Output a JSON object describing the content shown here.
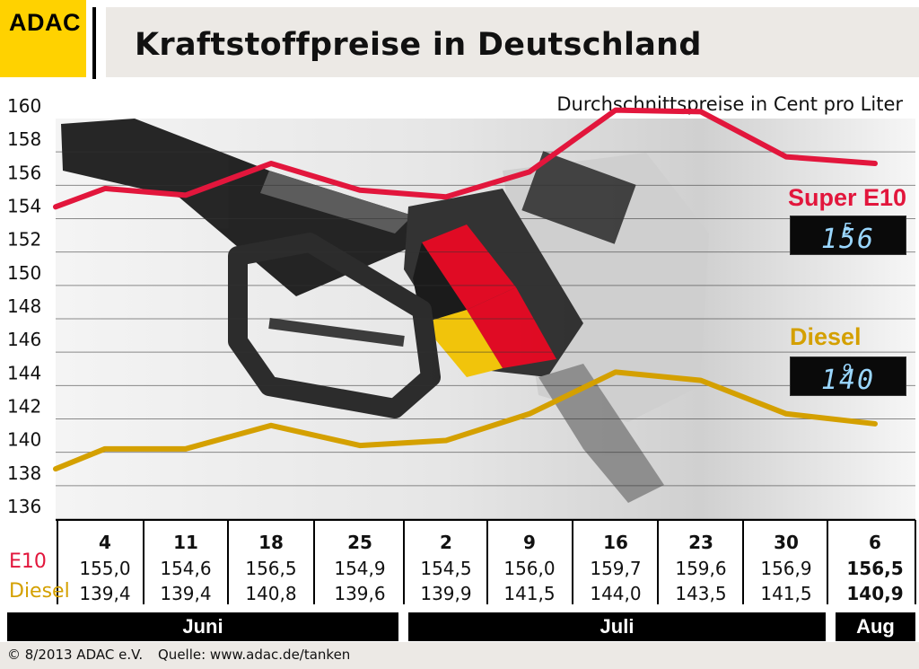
{
  "header": {
    "logo_text": "ADAC",
    "title": "Kraftstoffpreise in Deutschland",
    "subtitle": "Durchschnittspreise in Cent pro Liter"
  },
  "colors": {
    "e10": "#e2163c",
    "diesel": "#d4a000",
    "logo_yellow": "#ffd200"
  },
  "readouts": {
    "e10_label": "Super E10",
    "e10_value": "156",
    "e10_sup": "5",
    "diesel_label": "Diesel",
    "diesel_value": "140",
    "diesel_sup": "9"
  },
  "table": {
    "e10_row_label": "E10",
    "diesel_row_label": "Diesel"
  },
  "months": [
    "Juni",
    "Juli",
    "Aug"
  ],
  "footer": {
    "copyright": "© 8/2013  ADAC e.V.",
    "source": "Quelle: www.adac.de/tanken"
  },
  "chart_data": {
    "type": "line",
    "title": "Kraftstoffpreise in Deutschland",
    "subtitle": "Durchschnittspreise in Cent pro Liter",
    "x": [
      "4",
      "11",
      "18",
      "25",
      "2",
      "9",
      "16",
      "23",
      "30",
      "6"
    ],
    "ylim": [
      135,
      160
    ],
    "yticks": [
      136,
      138,
      140,
      142,
      144,
      146,
      148,
      150,
      152,
      154,
      156,
      158,
      160
    ],
    "grid": true,
    "series": [
      {
        "name": "Super E10",
        "row_label": "E10",
        "start": 153.9,
        "values": [
          155.0,
          154.6,
          156.5,
          154.9,
          154.5,
          156.0,
          159.7,
          159.6,
          156.9,
          156.5
        ],
        "labels": [
          "155,0",
          "154,6",
          "156,5",
          "154,9",
          "154,5",
          "156,0",
          "159,7",
          "159,6",
          "156,9",
          "156,5"
        ]
      },
      {
        "name": "Diesel",
        "row_label": "Diesel",
        "start": 138.2,
        "values": [
          139.4,
          139.4,
          140.8,
          139.6,
          139.9,
          141.5,
          144.0,
          143.5,
          141.5,
          140.9
        ],
        "labels": [
          "139,4",
          "139,4",
          "140,8",
          "139,6",
          "139,9",
          "141,5",
          "144,0",
          "143,5",
          "141,5",
          "140,9"
        ]
      }
    ]
  }
}
